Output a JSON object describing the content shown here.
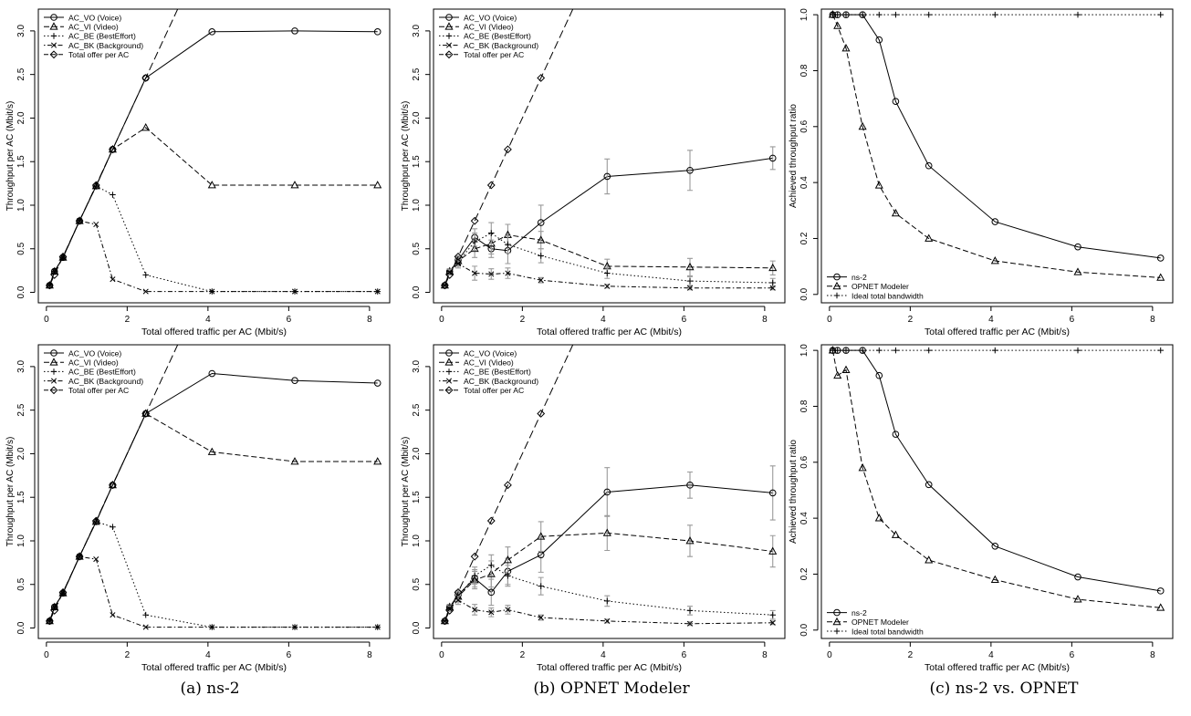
{
  "colors": {
    "axis": "#000000",
    "line": "#000000",
    "error_bar": "#9a9a9a",
    "background": "#ffffff"
  },
  "captions": {
    "a": "(a) ns-2",
    "b": "(b) OPNET Modeler",
    "c": "(c) ns-2 vs. OPNET"
  },
  "chart_data": [
    {
      "panel": "a-top",
      "type": "line",
      "xlabel": "Total offered traffic per AC (Mbit/s)",
      "ylabel": "Throughput per AC (Mbit/s)",
      "xlim": [
        -0.2,
        8.5
      ],
      "ylim": [
        -0.12,
        3.25
      ],
      "xticks": [
        0,
        2,
        4,
        6,
        8
      ],
      "yticks": [
        0.0,
        0.5,
        1.0,
        1.5,
        2.0,
        2.5,
        3.0
      ],
      "legend_position": "top-left",
      "series": [
        {
          "name": "AC_VO (Voice)",
          "dash": "solid",
          "marker": "circle",
          "x": [
            0.08,
            0.2,
            0.41,
            0.82,
            1.23,
            1.64,
            2.46,
            4.1,
            6.15,
            8.2
          ],
          "y": [
            0.08,
            0.24,
            0.4,
            0.82,
            1.22,
            1.64,
            2.46,
            2.99,
            3.0,
            2.99
          ]
        },
        {
          "name": "AC_VI (Video)",
          "dash": "dashed",
          "marker": "triangle",
          "x": [
            0.08,
            0.2,
            0.41,
            0.82,
            1.23,
            1.64,
            2.46,
            4.1,
            6.15,
            8.2
          ],
          "y": [
            0.08,
            0.24,
            0.4,
            0.82,
            1.22,
            1.64,
            1.89,
            1.23,
            1.23,
            1.23
          ]
        },
        {
          "name": "AC_BE (BestEffort)",
          "dash": "dotted",
          "marker": "plus",
          "x": [
            0.08,
            0.2,
            0.41,
            0.82,
            1.23,
            1.64,
            2.46,
            4.1,
            6.15,
            8.2
          ],
          "y": [
            0.08,
            0.24,
            0.4,
            0.82,
            1.22,
            1.12,
            0.2,
            0.01,
            0.01,
            0.01
          ]
        },
        {
          "name": "AC_BK (Background)",
          "dash": "dotdash",
          "marker": "cross",
          "x": [
            0.08,
            0.2,
            0.41,
            0.82,
            1.23,
            1.64,
            2.46,
            4.1,
            6.15,
            8.2
          ],
          "y": [
            0.08,
            0.24,
            0.4,
            0.82,
            0.78,
            0.15,
            0.01,
            0.01,
            0.01,
            0.01
          ]
        },
        {
          "name": "Total offer per AC",
          "dash": "longdash",
          "marker": "diamond",
          "x": [
            0.08,
            0.2,
            0.41,
            0.82,
            1.23,
            1.64,
            2.46,
            4.1
          ],
          "y": [
            0.08,
            0.2,
            0.41,
            0.82,
            1.23,
            1.64,
            2.46,
            4.1
          ],
          "marker_count": 7
        }
      ]
    },
    {
      "panel": "b-top",
      "type": "line",
      "xlabel": "Total offered traffic per AC (Mbit/s)",
      "ylabel": "Throughput per AC (Mbit/s)",
      "xlim": [
        -0.2,
        8.5
      ],
      "ylim": [
        -0.12,
        3.25
      ],
      "xticks": [
        0,
        2,
        4,
        6,
        8
      ],
      "yticks": [
        0.0,
        0.5,
        1.0,
        1.5,
        2.0,
        2.5,
        3.0
      ],
      "legend_position": "top-left",
      "series": [
        {
          "name": "AC_VO (Voice)",
          "dash": "solid",
          "marker": "circle",
          "x": [
            0.08,
            0.2,
            0.41,
            0.82,
            1.23,
            1.64,
            2.46,
            4.1,
            6.15,
            8.2
          ],
          "y": [
            0.08,
            0.24,
            0.37,
            0.63,
            0.5,
            0.48,
            0.8,
            1.33,
            1.4,
            1.54
          ],
          "err": [
            0.02,
            0.03,
            0.05,
            0.1,
            0.1,
            0.15,
            0.2,
            0.2,
            0.23,
            0.13
          ]
        },
        {
          "name": "AC_VI (Video)",
          "dash": "dashed",
          "marker": "triangle",
          "x": [
            0.08,
            0.2,
            0.41,
            0.82,
            1.23,
            1.64,
            2.46,
            4.1,
            6.15,
            8.2
          ],
          "y": [
            0.08,
            0.24,
            0.36,
            0.5,
            0.56,
            0.66,
            0.6,
            0.3,
            0.29,
            0.28
          ],
          "err": [
            0.02,
            0.03,
            0.05,
            0.1,
            0.12,
            0.12,
            0.1,
            0.08,
            0.1,
            0.08
          ]
        },
        {
          "name": "AC_BE (BestEffort)",
          "dash": "dotted",
          "marker": "plus",
          "x": [
            0.08,
            0.2,
            0.41,
            0.82,
            1.23,
            1.64,
            2.46,
            4.1,
            6.15,
            8.2
          ],
          "y": [
            0.08,
            0.24,
            0.35,
            0.58,
            0.68,
            0.55,
            0.42,
            0.22,
            0.13,
            0.11
          ],
          "err": [
            0.02,
            0.03,
            0.05,
            0.1,
            0.12,
            0.1,
            0.08,
            0.06,
            0.05,
            0.05
          ]
        },
        {
          "name": "AC_BK (Background)",
          "dash": "dotdash",
          "marker": "cross",
          "x": [
            0.08,
            0.2,
            0.41,
            0.82,
            1.23,
            1.64,
            2.46,
            4.1,
            6.15,
            8.2
          ],
          "y": [
            0.08,
            0.23,
            0.33,
            0.22,
            0.21,
            0.22,
            0.14,
            0.07,
            0.05,
            0.05
          ],
          "err": [
            0.02,
            0.03,
            0.05,
            0.08,
            0.06,
            0.06,
            0.03,
            0.02,
            0.02,
            0.02
          ]
        },
        {
          "name": "Total offer per AC",
          "dash": "longdash",
          "marker": "diamond",
          "x": [
            0.08,
            0.2,
            0.41,
            0.82,
            1.23,
            1.64,
            2.46,
            4.1
          ],
          "y": [
            0.08,
            0.2,
            0.41,
            0.82,
            1.23,
            1.64,
            2.46,
            4.1
          ],
          "marker_count": 7
        }
      ]
    },
    {
      "panel": "c-top",
      "type": "line",
      "xlabel": "Total offered traffic per AC (Mbit/s)",
      "ylabel": "Achieved throughput ratio",
      "xlim": [
        -0.2,
        8.5
      ],
      "ylim": [
        -0.03,
        1.02
      ],
      "xticks": [
        0,
        2,
        4,
        6,
        8
      ],
      "yticks": [
        0.0,
        0.2,
        0.4,
        0.6,
        0.8,
        1.0
      ],
      "legend_position": "bottom-left",
      "series": [
        {
          "name": "ns-2",
          "dash": "solid",
          "marker": "circle",
          "x": [
            0.08,
            0.2,
            0.41,
            0.82,
            1.23,
            1.64,
            2.46,
            4.1,
            6.15,
            8.2
          ],
          "y": [
            1.0,
            1.0,
            1.0,
            1.0,
            0.91,
            0.69,
            0.46,
            0.26,
            0.17,
            0.13
          ]
        },
        {
          "name": "OPNET Modeler",
          "dash": "dashed",
          "marker": "triangle",
          "x": [
            0.08,
            0.2,
            0.41,
            0.82,
            1.23,
            1.64,
            2.46,
            4.1,
            6.15,
            8.2
          ],
          "y": [
            1.0,
            0.96,
            0.88,
            0.6,
            0.39,
            0.29,
            0.2,
            0.12,
            0.08,
            0.06
          ]
        },
        {
          "name": "Ideal total bandwidth",
          "dash": "dotted",
          "marker": "plus",
          "x": [
            0.08,
            0.2,
            0.41,
            0.82,
            1.23,
            1.64,
            2.46,
            4.1,
            6.15,
            8.2
          ],
          "y": [
            1.0,
            1.0,
            1.0,
            1.0,
            1.0,
            1.0,
            1.0,
            1.0,
            1.0,
            1.0
          ]
        }
      ]
    },
    {
      "panel": "a-bottom",
      "type": "line",
      "xlabel": "Total offered traffic per AC (Mbit/s)",
      "ylabel": "Throughput per AC (Mbit/s)",
      "xlim": [
        -0.2,
        8.5
      ],
      "ylim": [
        -0.12,
        3.25
      ],
      "xticks": [
        0,
        2,
        4,
        6,
        8
      ],
      "yticks": [
        0.0,
        0.5,
        1.0,
        1.5,
        2.0,
        2.5,
        3.0
      ],
      "legend_position": "top-left",
      "series": [
        {
          "name": "AC_VO (Voice)",
          "dash": "solid",
          "marker": "circle",
          "x": [
            0.08,
            0.2,
            0.41,
            0.82,
            1.23,
            1.64,
            2.46,
            4.1,
            6.15,
            8.2
          ],
          "y": [
            0.08,
            0.24,
            0.4,
            0.82,
            1.22,
            1.64,
            2.46,
            2.92,
            2.84,
            2.81
          ]
        },
        {
          "name": "AC_VI (Video)",
          "dash": "dashed",
          "marker": "triangle",
          "x": [
            0.08,
            0.2,
            0.41,
            0.82,
            1.23,
            1.64,
            2.46,
            4.1,
            6.15,
            8.2
          ],
          "y": [
            0.08,
            0.24,
            0.4,
            0.82,
            1.22,
            1.64,
            2.46,
            2.02,
            1.91,
            1.91
          ]
        },
        {
          "name": "AC_BE (BestEffort)",
          "dash": "dotted",
          "marker": "plus",
          "x": [
            0.08,
            0.2,
            0.41,
            0.82,
            1.23,
            1.64,
            2.46,
            4.1,
            6.15,
            8.2
          ],
          "y": [
            0.08,
            0.24,
            0.4,
            0.82,
            1.22,
            1.16,
            0.15,
            0.01,
            0.01,
            0.01
          ]
        },
        {
          "name": "AC_BK (Background)",
          "dash": "dotdash",
          "marker": "cross",
          "x": [
            0.08,
            0.2,
            0.41,
            0.82,
            1.23,
            1.64,
            2.46,
            4.1,
            6.15,
            8.2
          ],
          "y": [
            0.08,
            0.24,
            0.4,
            0.82,
            0.79,
            0.15,
            0.01,
            0.01,
            0.01,
            0.01
          ]
        },
        {
          "name": "Total offer per AC",
          "dash": "longdash",
          "marker": "diamond",
          "x": [
            0.08,
            0.2,
            0.41,
            0.82,
            1.23,
            1.64,
            2.46,
            4.1
          ],
          "y": [
            0.08,
            0.2,
            0.41,
            0.82,
            1.23,
            1.64,
            2.46,
            4.1
          ],
          "marker_count": 7
        }
      ]
    },
    {
      "panel": "b-bottom",
      "type": "line",
      "xlabel": "Total offered traffic per AC (Mbit/s)",
      "ylabel": "Throughput per AC (Mbit/s)",
      "xlim": [
        -0.2,
        8.5
      ],
      "ylim": [
        -0.12,
        3.25
      ],
      "xticks": [
        0,
        2,
        4,
        6,
        8
      ],
      "yticks": [
        0.0,
        0.5,
        1.0,
        1.5,
        2.0,
        2.5,
        3.0
      ],
      "legend_position": "top-left",
      "series": [
        {
          "name": "AC_VO (Voice)",
          "dash": "solid",
          "marker": "circle",
          "x": [
            0.08,
            0.2,
            0.41,
            0.82,
            1.23,
            1.64,
            2.46,
            4.1,
            6.15,
            8.2
          ],
          "y": [
            0.08,
            0.24,
            0.38,
            0.57,
            0.41,
            0.65,
            0.84,
            1.56,
            1.64,
            1.55
          ],
          "err": [
            0.02,
            0.03,
            0.05,
            0.1,
            0.15,
            0.15,
            0.2,
            0.28,
            0.15,
            0.31
          ]
        },
        {
          "name": "AC_VI (Video)",
          "dash": "dashed",
          "marker": "triangle",
          "x": [
            0.08,
            0.2,
            0.41,
            0.82,
            1.23,
            1.64,
            2.46,
            4.1,
            6.15,
            8.2
          ],
          "y": [
            0.08,
            0.24,
            0.36,
            0.55,
            0.62,
            0.78,
            1.05,
            1.09,
            1.0,
            0.88
          ],
          "err": [
            0.02,
            0.03,
            0.05,
            0.1,
            0.15,
            0.15,
            0.17,
            0.2,
            0.18,
            0.18
          ]
        },
        {
          "name": "AC_BE (BestEffort)",
          "dash": "dotted",
          "marker": "plus",
          "x": [
            0.08,
            0.2,
            0.41,
            0.82,
            1.23,
            1.64,
            2.46,
            4.1,
            6.15,
            8.2
          ],
          "y": [
            0.08,
            0.24,
            0.35,
            0.6,
            0.72,
            0.6,
            0.48,
            0.31,
            0.2,
            0.15
          ],
          "err": [
            0.02,
            0.03,
            0.05,
            0.1,
            0.12,
            0.12,
            0.1,
            0.06,
            0.05,
            0.05
          ]
        },
        {
          "name": "AC_BK (Background)",
          "dash": "dotdash",
          "marker": "cross",
          "x": [
            0.08,
            0.2,
            0.41,
            0.82,
            1.23,
            1.64,
            2.46,
            4.1,
            6.15,
            8.2
          ],
          "y": [
            0.08,
            0.22,
            0.32,
            0.21,
            0.18,
            0.21,
            0.12,
            0.08,
            0.05,
            0.06
          ],
          "err": [
            0.02,
            0.03,
            0.05,
            0.06,
            0.05,
            0.05,
            0.03,
            0.02,
            0.02,
            0.02
          ]
        },
        {
          "name": "Total offer per AC",
          "dash": "longdash",
          "marker": "diamond",
          "x": [
            0.08,
            0.2,
            0.41,
            0.82,
            1.23,
            1.64,
            2.46,
            4.1
          ],
          "y": [
            0.08,
            0.2,
            0.41,
            0.82,
            1.23,
            1.64,
            2.46,
            4.1
          ],
          "marker_count": 7
        }
      ]
    },
    {
      "panel": "c-bottom",
      "type": "line",
      "xlabel": "Total offered traffic per AC (Mbit/s)",
      "ylabel": "Achieved throughput ratio",
      "xlim": [
        -0.2,
        8.5
      ],
      "ylim": [
        -0.03,
        1.02
      ],
      "xticks": [
        0,
        2,
        4,
        6,
        8
      ],
      "yticks": [
        0.0,
        0.2,
        0.4,
        0.6,
        0.8,
        1.0
      ],
      "legend_position": "bottom-left",
      "series": [
        {
          "name": "ns-2",
          "dash": "solid",
          "marker": "circle",
          "x": [
            0.08,
            0.2,
            0.41,
            0.82,
            1.23,
            1.64,
            2.46,
            4.1,
            6.15,
            8.2
          ],
          "y": [
            1.0,
            1.0,
            1.0,
            1.0,
            0.91,
            0.7,
            0.52,
            0.3,
            0.19,
            0.14
          ]
        },
        {
          "name": "OPNET Modeler",
          "dash": "dashed",
          "marker": "triangle",
          "x": [
            0.08,
            0.2,
            0.41,
            0.82,
            1.23,
            1.64,
            2.46,
            4.1,
            6.15,
            8.2
          ],
          "y": [
            1.0,
            0.91,
            0.93,
            0.58,
            0.4,
            0.34,
            0.25,
            0.18,
            0.11,
            0.08
          ]
        },
        {
          "name": "Ideal total bandwidth",
          "dash": "dotted",
          "marker": "plus",
          "x": [
            0.08,
            0.2,
            0.41,
            0.82,
            1.23,
            1.64,
            2.46,
            4.1,
            6.15,
            8.2
          ],
          "y": [
            1.0,
            1.0,
            1.0,
            1.0,
            1.0,
            1.0,
            1.0,
            1.0,
            1.0,
            1.0
          ]
        }
      ]
    }
  ]
}
